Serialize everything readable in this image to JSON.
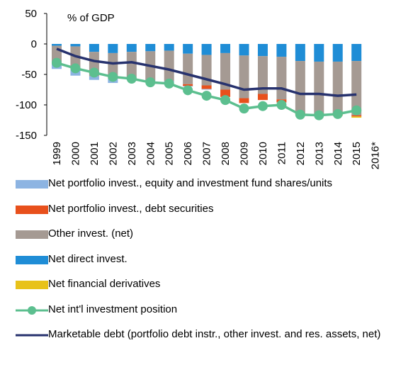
{
  "chart_data": {
    "type": "bar",
    "stacked": true,
    "title": "% of  GDP",
    "categories": [
      "1999",
      "2000",
      "2001",
      "2002",
      "2003",
      "2004",
      "2005",
      "2006",
      "2007",
      "2008",
      "2009",
      "2010",
      "2011",
      "2012",
      "2013",
      "2014",
      "2015",
      "2016*"
    ],
    "ylim": [
      -150,
      50
    ],
    "yticks": [
      -150,
      -100,
      -50,
      0,
      50
    ],
    "series": [
      {
        "name": "Net direct invest.",
        "color": "#1f8dd6",
        "values": [
          -3,
          -4,
          -13,
          -15,
          -13,
          -12,
          -11,
          -16,
          -18,
          -15,
          -19,
          -20,
          -21,
          -28,
          -29,
          -29,
          -28,
          null
        ]
      },
      {
        "name": "Other invest. (net)",
        "color": "#a59a93",
        "values": [
          -30,
          -38,
          -40,
          -42,
          -43,
          -48,
          -50,
          -50,
          -50,
          -60,
          -70,
          -62,
          -70,
          -85,
          -86,
          -86,
          -89,
          null
        ]
      },
      {
        "name": "Net portfolio invest., debt securities",
        "color": "#e8501c",
        "values": [
          0,
          0,
          0,
          0,
          0,
          0,
          0,
          -3,
          -6,
          -12,
          -8,
          -10,
          -5,
          -2,
          -2,
          -2,
          -2,
          null
        ]
      },
      {
        "name": "Net portfolio invest., equity and investment fund shares/units",
        "color": "#8db4e2",
        "values": [
          -8,
          -10,
          -6,
          -7,
          -3,
          -3,
          -2,
          -1,
          -1,
          0,
          0,
          0,
          0,
          0,
          0,
          0,
          0,
          null
        ]
      },
      {
        "name": "Net financial derivatives",
        "color": "#e8c21a",
        "values": [
          0,
          0,
          0,
          0,
          0,
          0,
          0,
          0,
          0,
          0,
          0,
          0,
          0,
          -2,
          -1,
          -1,
          -2,
          null
        ]
      },
      {
        "name": "Net int'l investment position",
        "color": "#5cbf8f",
        "type": "line",
        "marker": true,
        "values": [
          -31,
          -40,
          -47,
          -54,
          -57,
          -63,
          -65,
          -76,
          -85,
          -92,
          -106,
          -102,
          -100,
          -116,
          -117,
          -115,
          -109,
          null
        ]
      },
      {
        "name": "Marketable debt (portfolio debt instr., other invest. and res. assets, net)",
        "color": "#27326e",
        "type": "line",
        "marker": false,
        "values": [
          -8,
          -20,
          -28,
          -32,
          -30,
          -36,
          -42,
          -50,
          -58,
          -66,
          -75,
          -73,
          -73,
          -82,
          -82,
          -85,
          -83,
          null
        ]
      }
    ],
    "legend_order": [
      3,
      2,
      1,
      0,
      4,
      5,
      6
    ]
  }
}
